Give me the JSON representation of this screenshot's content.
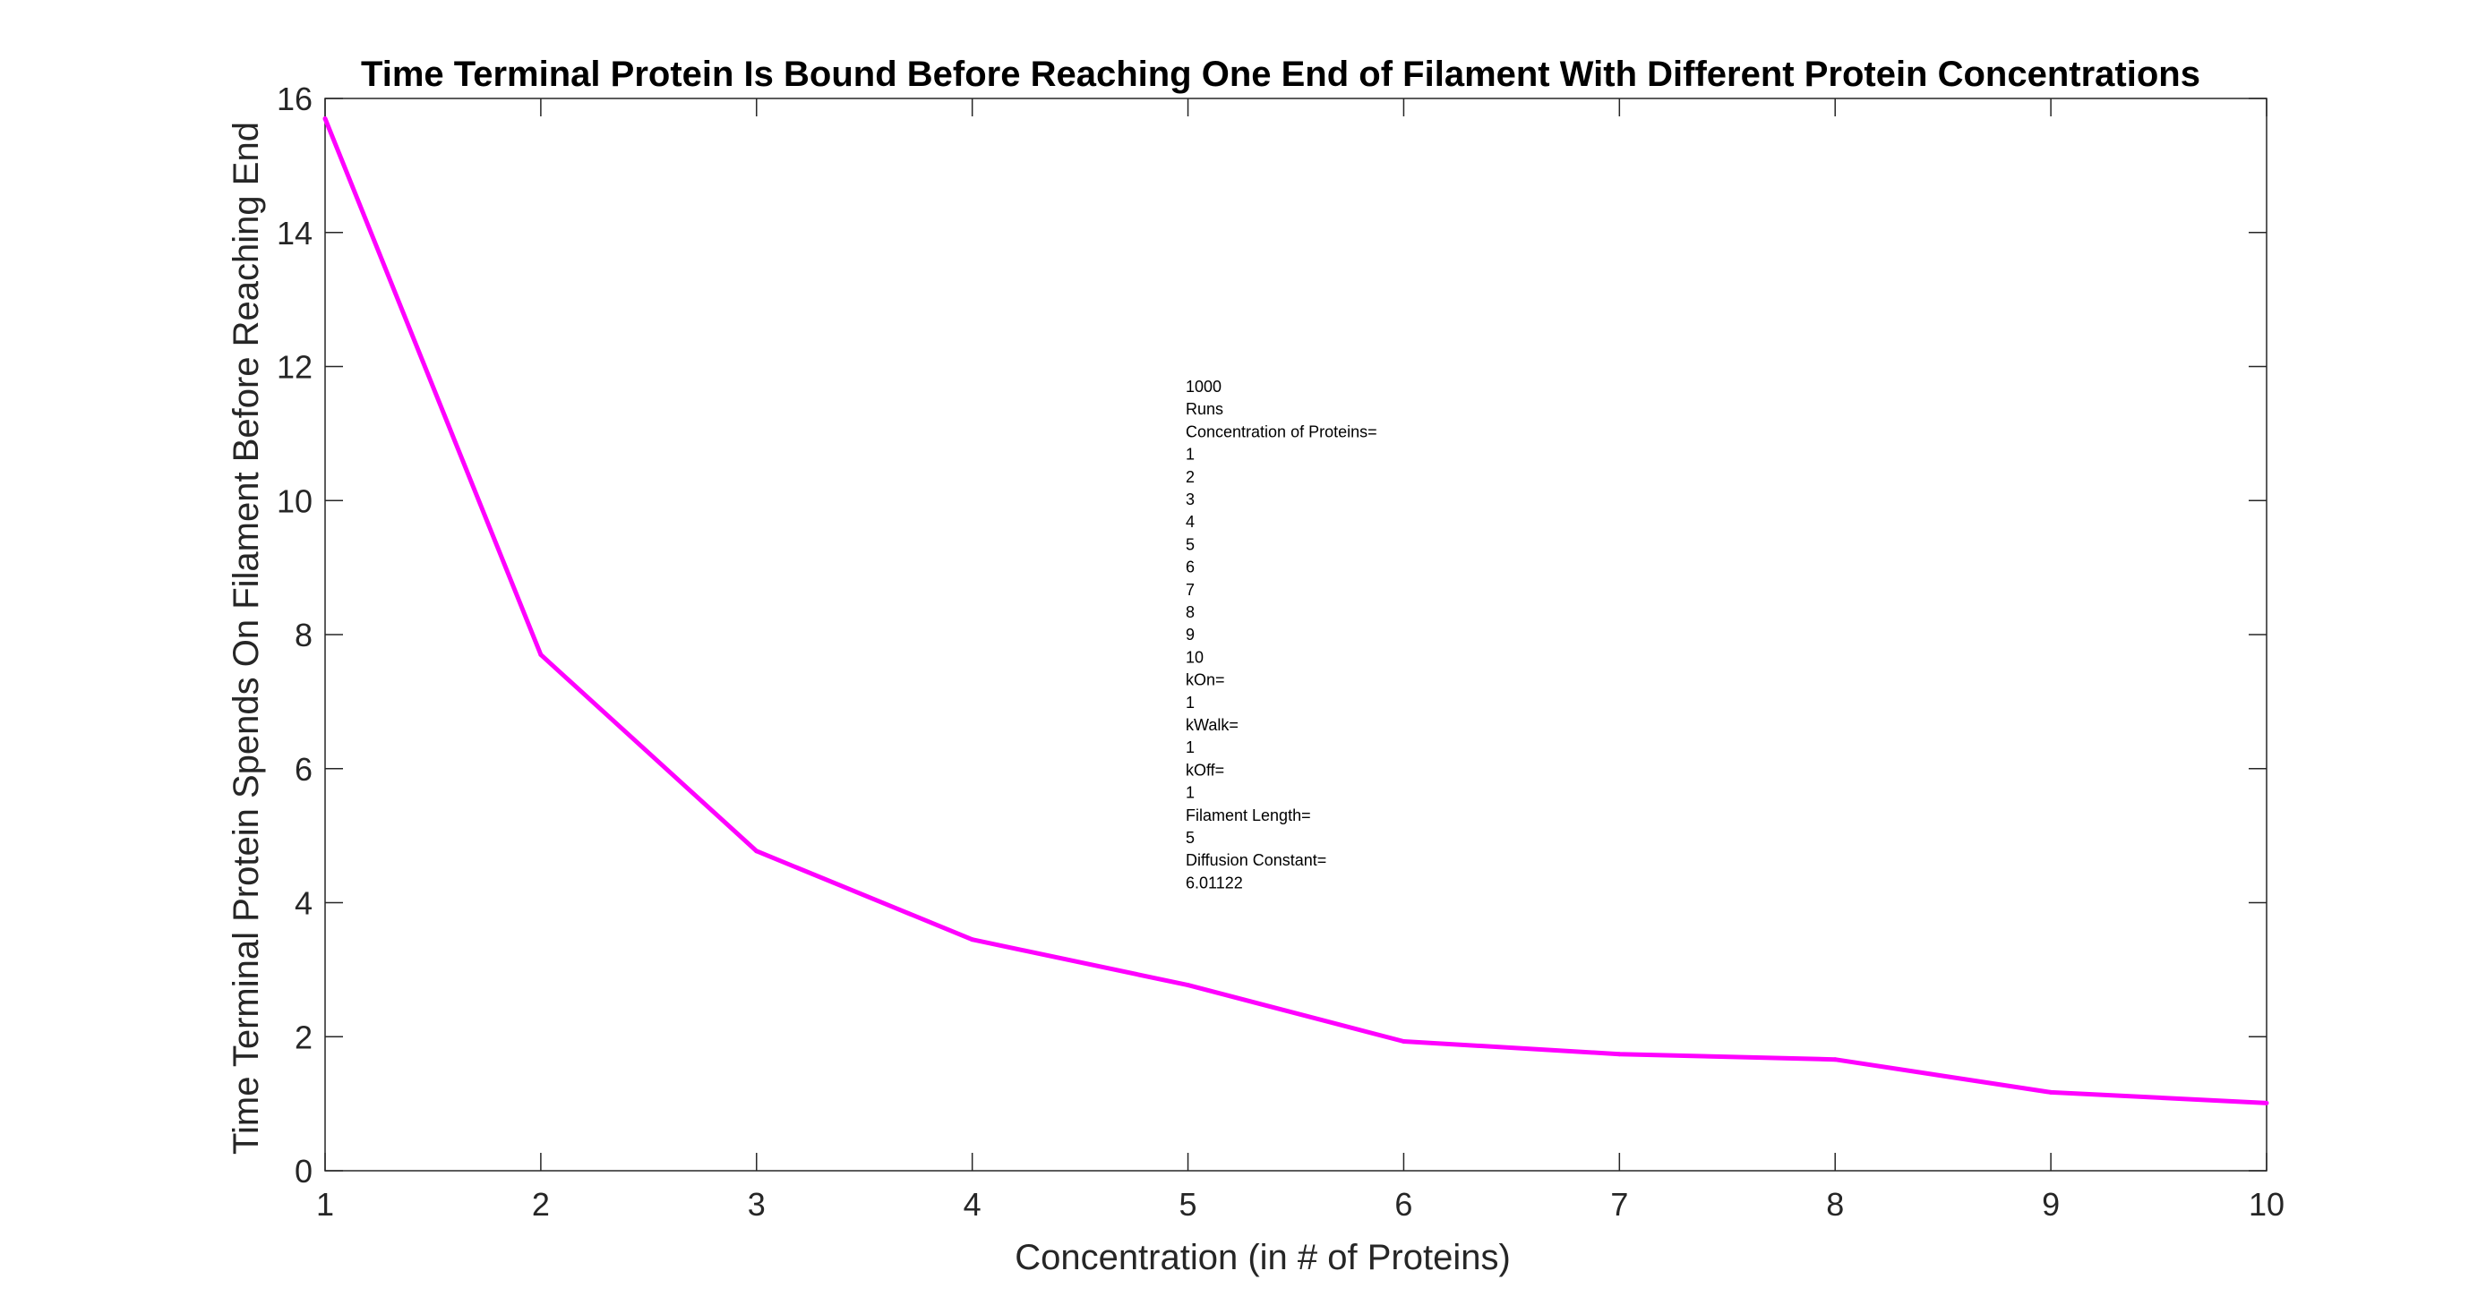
{
  "colors": {
    "series": "#ff00ff",
    "axes": "#262626",
    "background": "#ffffff"
  },
  "chart_data": {
    "type": "line",
    "title": "Time Terminal Protein Is Bound Before Reaching One End of Filament With Different Protein Concentrations",
    "xlabel": "Concentration (in # of Proteins)",
    "ylabel": "Time Terminal Protein Spends On Filament Before Reaching End",
    "xlim": [
      1,
      10
    ],
    "ylim": [
      0,
      16
    ],
    "xticks": [
      "1",
      "2",
      "3",
      "4",
      "5",
      "6",
      "7",
      "8",
      "9",
      "10"
    ],
    "yticks": [
      "0",
      "2",
      "4",
      "6",
      "8",
      "10",
      "12",
      "14",
      "16"
    ],
    "grid": false,
    "legend": "none",
    "x": [
      1,
      2,
      3,
      4,
      5,
      6,
      7,
      8,
      9,
      10
    ],
    "series": [
      {
        "values": [
          15.7,
          7.7,
          4.77,
          3.45,
          2.77,
          1.93,
          1.74,
          1.66,
          1.17,
          1.01
        ]
      }
    ],
    "annotation": [
      "1000",
      "Runs",
      "Concentration of Proteins=",
      "1",
      "2",
      "3",
      "4",
      "5",
      "6",
      "7",
      "8",
      "9",
      "10",
      "kOn=",
      "1",
      "kWalk=",
      "1",
      "kOff=",
      "1",
      "Filament Length=",
      "5",
      "Diffusion Constant=",
      "6.01122"
    ]
  }
}
